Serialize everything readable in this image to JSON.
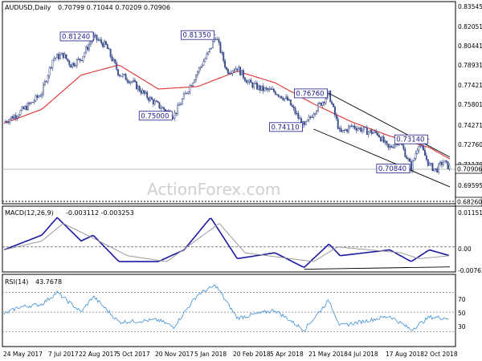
{
  "header": {
    "symbol": "AUDUSD,Daily",
    "ohlc": "0.70799 0.71044 0.70209 0.70906"
  },
  "watermark": "ActionForex.com",
  "colors": {
    "candle": "#3b4d8a",
    "ma": "#e03030",
    "macd": "#1a1aa0",
    "signal": "#9a9a9a",
    "rsi": "#3d8fd6",
    "channel": "#000000",
    "callout": "#1a1a8c"
  },
  "chart_data": [
    {
      "type": "candlestick",
      "title": "AUDUSD,Daily",
      "ohlc_label": "0.70799 0.71044 0.70209 0.70906",
      "ylim": [
        0.6826,
        0.8354
      ],
      "y_ticks": [
        "0.83545",
        "0.82051",
        "0.80441",
        "0.78931",
        "0.77421",
        "0.75801",
        "0.74271",
        "0.72760",
        "0.71170",
        "0.69595",
        "0.68260"
      ],
      "x_ticks": [
        "24 May 2017",
        "7 Jul 2017",
        "22 Aug 2017",
        "5 Oct 2017",
        "20 Nov 2017",
        "5 Jan 2018",
        "20 Feb 2018",
        "5 Apr 2018",
        "21 May 2018",
        "4 Jul 2018",
        "17 Aug 2018",
        "2 Oct 2018"
      ],
      "current_price_label": "0.70906",
      "support_label": "0.68260",
      "close_path": [
        {
          "x": "24 May 2017",
          "y": 0.745
        },
        {
          "x": "10 Jun 2017",
          "y": 0.752
        },
        {
          "x": "25 Jun 2017",
          "y": 0.76
        },
        {
          "x": "7 Jul 2017",
          "y": 0.768
        },
        {
          "x": "20 Jul 2017",
          "y": 0.795
        },
        {
          "x": "1 Aug 2017",
          "y": 0.798
        },
        {
          "x": "10 Aug 2017",
          "y": 0.79
        },
        {
          "x": "22 Aug 2017",
          "y": 0.795
        },
        {
          "x": "5 Sep 2017",
          "y": 0.812
        },
        {
          "x": "20 Sep 2017",
          "y": 0.805
        },
        {
          "x": "5 Oct 2017",
          "y": 0.783
        },
        {
          "x": "20 Oct 2017",
          "y": 0.777
        },
        {
          "x": "5 Nov 2017",
          "y": 0.766
        },
        {
          "x": "20 Nov 2017",
          "y": 0.758
        },
        {
          "x": "8 Dec 2017",
          "y": 0.75
        },
        {
          "x": "20 Dec 2017",
          "y": 0.765
        },
        {
          "x": "5 Jan 2018",
          "y": 0.785
        },
        {
          "x": "18 Jan 2018",
          "y": 0.8
        },
        {
          "x": "26 Jan 2018",
          "y": 0.813
        },
        {
          "x": "8 Feb 2018",
          "y": 0.785
        },
        {
          "x": "20 Feb 2018",
          "y": 0.788
        },
        {
          "x": "5 Mar 2018",
          "y": 0.776
        },
        {
          "x": "20 Mar 2018",
          "y": 0.771
        },
        {
          "x": "5 Apr 2018",
          "y": 0.769
        },
        {
          "x": "20 Apr 2018",
          "y": 0.762
        },
        {
          "x": "9 May 2018",
          "y": 0.741
        },
        {
          "x": "21 May 2018",
          "y": 0.754
        },
        {
          "x": "7 Jun 2018",
          "y": 0.767
        },
        {
          "x": "20 Jun 2018",
          "y": 0.736
        },
        {
          "x": "4 Jul 2018",
          "y": 0.742
        },
        {
          "x": "20 Jul 2018",
          "y": 0.738
        },
        {
          "x": "3 Aug 2018",
          "y": 0.736
        },
        {
          "x": "15 Aug 2018",
          "y": 0.724
        },
        {
          "x": "28 Aug 2018",
          "y": 0.731
        },
        {
          "x": "11 Sep 2018",
          "y": 0.709
        },
        {
          "x": "20 Sep 2018",
          "y": 0.729
        },
        {
          "x": "2 Oct 2018",
          "y": 0.711
        },
        {
          "x": "10 Oct 2018",
          "y": 0.707
        },
        {
          "x": "18 Oct 2018",
          "y": 0.714
        },
        {
          "x": "26 Oct 2018",
          "y": 0.709
        }
      ],
      "ma_path": [
        {
          "x": "24 May 2017",
          "y": 0.744
        },
        {
          "x": "7 Jul 2017",
          "y": 0.755
        },
        {
          "x": "22 Aug 2017",
          "y": 0.782
        },
        {
          "x": "5 Oct 2017",
          "y": 0.79
        },
        {
          "x": "20 Nov 2017",
          "y": 0.771
        },
        {
          "x": "5 Jan 2018",
          "y": 0.773
        },
        {
          "x": "20 Feb 2018",
          "y": 0.785
        },
        {
          "x": "5 Apr 2018",
          "y": 0.776
        },
        {
          "x": "21 May 2018",
          "y": 0.759
        },
        {
          "x": "4 Jul 2018",
          "y": 0.745
        },
        {
          "x": "17 Aug 2018",
          "y": 0.734
        },
        {
          "x": "2 Oct 2018",
          "y": 0.725
        },
        {
          "x": "26 Oct 2018",
          "y": 0.716
        }
      ],
      "callouts": [
        {
          "label": "0.81240",
          "x": "7 Sep 2017",
          "y": 0.8124
        },
        {
          "label": "0.75000",
          "x": "8 Dec 2017",
          "y": 0.75
        },
        {
          "label": "0.81350",
          "x": "26 Jan 2018",
          "y": 0.8135
        },
        {
          "label": "0.76760",
          "x": "7 Jun 2018",
          "y": 0.7676
        },
        {
          "label": "0.74110",
          "x": "9 May 2018",
          "y": 0.7411
        },
        {
          "label": "0.73140",
          "x": "2 Oct 2018",
          "y": 0.7314
        },
        {
          "label": "0.70840",
          "x": "11 Sep 2018",
          "y": 0.7084
        }
      ],
      "channel": {
        "upper": [
          {
            "x": "7 Jun 2018",
            "y": 0.7676
          },
          {
            "x": "26 Oct 2018",
            "y": 0.7175
          }
        ],
        "lower": [
          {
            "x": "20 May 2018",
            "y": 0.7395
          },
          {
            "x": "26 Oct 2018",
            "y": 0.694
          }
        ]
      }
    },
    {
      "type": "line",
      "title": "MACD(12,26,9)",
      "header_values": "-0.003112 -0.003253",
      "ylim": [
        -0.0088,
        0.0125
      ],
      "y_ticks": [
        "0.011517",
        "0.00",
        "-0.007634"
      ],
      "series": [
        {
          "name": "MACD",
          "values_path": [
            {
              "x": "24 May 2017",
              "y": -0.001
            },
            {
              "x": "7 Jul 2017",
              "y": 0.004
            },
            {
              "x": "25 Jul 2017",
              "y": 0.01
            },
            {
              "x": "22 Aug 2017",
              "y": 0.002
            },
            {
              "x": "5 Sep 2017",
              "y": 0.004
            },
            {
              "x": "5 Oct 2017",
              "y": -0.005
            },
            {
              "x": "20 Nov 2017",
              "y": -0.005
            },
            {
              "x": "20 Dec 2017",
              "y": -0.001
            },
            {
              "x": "20 Jan 2018",
              "y": 0.01
            },
            {
              "x": "20 Feb 2018",
              "y": -0.004
            },
            {
              "x": "5 Apr 2018",
              "y": -0.002
            },
            {
              "x": "9 May 2018",
              "y": -0.007
            },
            {
              "x": "7 Jun 2018",
              "y": 0.001
            },
            {
              "x": "20 Jun 2018",
              "y": -0.003
            },
            {
              "x": "17 Aug 2018",
              "y": -0.001
            },
            {
              "x": "11 Sep 2018",
              "y": -0.005
            },
            {
              "x": "2 Oct 2018",
              "y": -0.001
            },
            {
              "x": "26 Oct 2018",
              "y": -0.003
            }
          ]
        },
        {
          "name": "Signal",
          "values_path": [
            {
              "x": "24 May 2017",
              "y": -0.001
            },
            {
              "x": "7 Jul 2017",
              "y": 0.002
            },
            {
              "x": "1 Aug 2017",
              "y": 0.008
            },
            {
              "x": "5 Sep 2017",
              "y": 0.003
            },
            {
              "x": "15 Oct 2017",
              "y": -0.003
            },
            {
              "x": "30 Nov 2017",
              "y": -0.005
            },
            {
              "x": "30 Jan 2018",
              "y": 0.008
            },
            {
              "x": "1 Mar 2018",
              "y": -0.002
            },
            {
              "x": "20 May 2018",
              "y": -0.005
            },
            {
              "x": "17 Jun 2018",
              "y": 0.0
            },
            {
              "x": "30 Aug 2018",
              "y": -0.002
            },
            {
              "x": "20 Sep 2018",
              "y": -0.004
            },
            {
              "x": "26 Oct 2018",
              "y": -0.003
            }
          ]
        }
      ],
      "trendline": [
        {
          "x": "9 May 2018",
          "y": -0.0076
        },
        {
          "x": "26 Oct 2018",
          "y": -0.0068
        }
      ]
    },
    {
      "type": "line",
      "title": "RSI(14)",
      "header_values": "43.7678",
      "ylim": [
        20,
        85
      ],
      "y_ticks": [
        "70",
        "50",
        "30"
      ],
      "series": [
        {
          "name": "RSI",
          "values_path": [
            {
              "x": "24 May 2017",
              "y": 48
            },
            {
              "x": "10 Jun 2017",
              "y": 55
            },
            {
              "x": "7 Jul 2017",
              "y": 58
            },
            {
              "x": "25 Jul 2017",
              "y": 70
            },
            {
              "x": "22 Aug 2017",
              "y": 50
            },
            {
              "x": "5 Sep 2017",
              "y": 66
            },
            {
              "x": "5 Oct 2017",
              "y": 40
            },
            {
              "x": "20 Nov 2017",
              "y": 42
            },
            {
              "x": "8 Dec 2017",
              "y": 35
            },
            {
              "x": "5 Jan 2018",
              "y": 68
            },
            {
              "x": "26 Jan 2018",
              "y": 77
            },
            {
              "x": "20 Feb 2018",
              "y": 44
            },
            {
              "x": "5 Apr 2018",
              "y": 52
            },
            {
              "x": "9 May 2018",
              "y": 32
            },
            {
              "x": "7 Jun 2018",
              "y": 62
            },
            {
              "x": "20 Jun 2018",
              "y": 36
            },
            {
              "x": "17 Aug 2018",
              "y": 46
            },
            {
              "x": "11 Sep 2018",
              "y": 32
            },
            {
              "x": "2 Oct 2018",
              "y": 45
            },
            {
              "x": "26 Oct 2018",
              "y": 43.8
            }
          ]
        }
      ]
    }
  ]
}
